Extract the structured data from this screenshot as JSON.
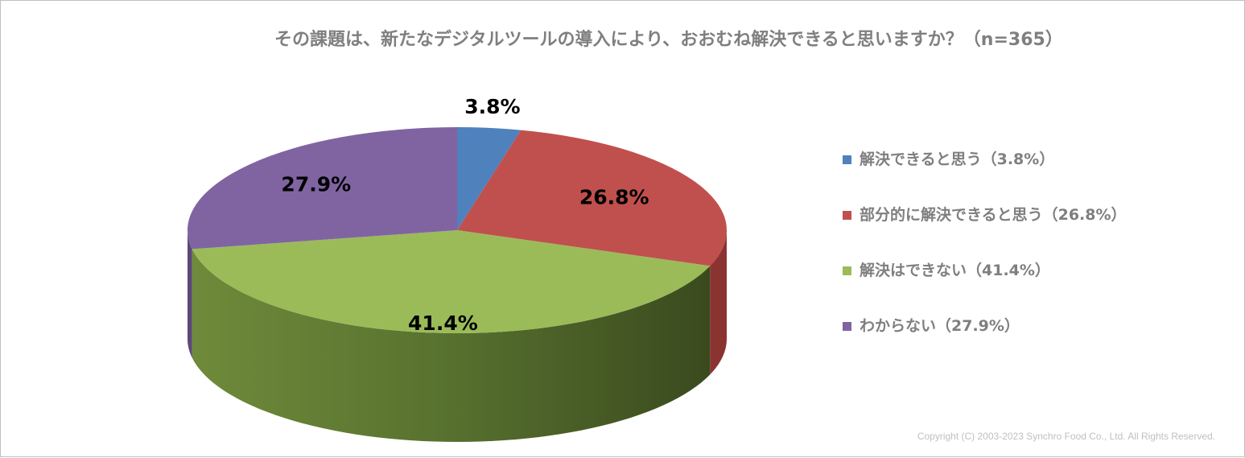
{
  "chart_data": {
    "type": "pie",
    "title": "その課題は、新たなデジタルツールの導入により、おおむね解決できると思いますか？（n=365）",
    "slices": [
      {
        "name": "解決できると思う",
        "value": 3.8,
        "label": "3.8%",
        "legend": "解決できると思う（3.8%）",
        "color": "#4f81bd",
        "side": "#3a5f8c"
      },
      {
        "name": "部分的に解決できると思う",
        "value": 26.8,
        "label": "26.8%",
        "legend": "部分的に解決できると思う（26.8%）",
        "color": "#c0504d",
        "side": "#8b3331"
      },
      {
        "name": "解決はできない",
        "value": 41.4,
        "label": "41.4%",
        "legend": "解決はできない（41.4%）",
        "color": "#9bbb59",
        "side": "#6f8a3a"
      },
      {
        "name": "わからない",
        "value": 27.9,
        "label": "27.9%",
        "legend": "わからない（27.9%）",
        "color": "#8064a2",
        "side": "#5c4878"
      }
    ],
    "legend_position": "right",
    "style": "3d"
  },
  "copyright": "Copyright (C) 2003-2023   Synchro Food Co., Ltd.  All Rights Reserved."
}
